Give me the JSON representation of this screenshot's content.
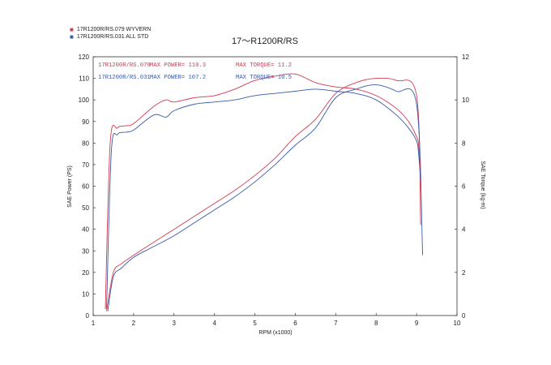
{
  "legend": [
    {
      "label": "17R1200R/RS.079  WYVERN",
      "color": "#d23a52",
      "swatch": "■"
    },
    {
      "label": "17R1200R/RS.031  ALL STD",
      "color": "#3a5aa8",
      "swatch": "■"
    }
  ],
  "chart_data": {
    "type": "line",
    "title": "17～R1200R/RS",
    "xlabel": "RPM (x1000)",
    "ylabel_left": "SAE Power (PS)",
    "ylabel_right": "SAE Torque (kg-m)",
    "xlim": [
      1,
      10
    ],
    "ylim_left": [
      0,
      120
    ],
    "ylim_right": [
      0,
      12
    ],
    "x_ticks": [
      "1",
      "2",
      "3",
      "4",
      "5",
      "6",
      "7",
      "8",
      "9",
      "10"
    ],
    "y_left_ticks": [
      "0",
      "10",
      "20",
      "30",
      "40",
      "50",
      "60",
      "70",
      "80",
      "90",
      "100",
      "110",
      "120"
    ],
    "y_right_ticks": [
      "0",
      "2",
      "4",
      "6",
      "8",
      "10",
      "12"
    ],
    "grid": false,
    "annotations": [
      {
        "text": "17R1200R/RS.079",
        "color": "#d23a52"
      },
      {
        "text": "MAX POWER= 110.3",
        "color": "#d23a52"
      },
      {
        "text": "MAX TORQUE= 11.2",
        "color": "#d23a52"
      },
      {
        "text": "17R1200R/RS.031",
        "color": "#3a5aa8"
      },
      {
        "text": "MAX POWER= 107.2",
        "color": "#3a5aa8"
      },
      {
        "text": "MAX TORQUE= 10.5",
        "color": "#3a5aa8"
      }
    ],
    "series": [
      {
        "name": "17R1200R/RS.079 WYVERN",
        "color": "#d23a52",
        "axis": "left",
        "kind": "power",
        "x": [
          1.33,
          1.5,
          1.7,
          2.0,
          2.5,
          3.0,
          3.5,
          4.0,
          4.5,
          5.0,
          5.5,
          6.0,
          6.5,
          7.0,
          7.5,
          8.0,
          8.5,
          9.0,
          9.1
        ],
        "y": [
          2,
          20,
          24,
          28,
          34,
          40,
          46,
          52,
          58,
          65,
          73,
          83,
          91,
          103,
          108,
          110,
          109,
          102,
          42
        ]
      },
      {
        "name": "17R1200R/RS.031 ALL STD",
        "color": "#3a5aa8",
        "axis": "left",
        "kind": "power",
        "x": [
          1.36,
          1.5,
          1.7,
          2.0,
          2.5,
          3.0,
          3.5,
          4.0,
          4.5,
          5.0,
          5.5,
          6.0,
          6.5,
          7.0,
          7.5,
          8.0,
          8.5,
          9.0,
          9.15
        ],
        "y": [
          2,
          18,
          22,
          27,
          32,
          37,
          43,
          49,
          55,
          62,
          70,
          79,
          87,
          101,
          105,
          107,
          104,
          98,
          28
        ]
      },
      {
        "name": "17R1200R/RS.079 WYVERN torque",
        "color": "#d23a52",
        "axis": "right",
        "kind": "torque",
        "x": [
          1.3,
          1.42,
          1.6,
          1.8,
          2.0,
          2.5,
          2.8,
          3.0,
          3.5,
          4.0,
          4.5,
          5.0,
          5.5,
          6.0,
          6.5,
          7.0,
          7.5,
          8.0,
          8.5,
          8.8,
          9.0,
          9.05,
          9.1
        ],
        "y": [
          0.3,
          8.0,
          8.7,
          8.8,
          8.9,
          9.7,
          10.0,
          9.9,
          10.1,
          10.2,
          10.5,
          10.9,
          11.1,
          11.2,
          10.8,
          10.6,
          10.5,
          10.2,
          9.6,
          9.0,
          8.3,
          7.9,
          6.7
        ]
      },
      {
        "name": "17R1200R/RS.031 ALL STD torque",
        "color": "#3a5aa8",
        "axis": "right",
        "kind": "torque",
        "x": [
          1.33,
          1.45,
          1.6,
          1.8,
          2.0,
          2.5,
          2.8,
          3.0,
          3.5,
          4.0,
          4.5,
          5.0,
          5.5,
          6.0,
          6.5,
          7.0,
          7.5,
          8.0,
          8.5,
          8.8,
          9.0,
          9.05,
          9.1
        ],
        "y": [
          0.3,
          7.6,
          8.4,
          8.5,
          8.6,
          9.3,
          9.2,
          9.5,
          9.8,
          9.9,
          10.0,
          10.2,
          10.3,
          10.4,
          10.5,
          10.4,
          10.3,
          10.0,
          9.3,
          8.7,
          8.1,
          7.5,
          6.3
        ]
      }
    ]
  }
}
